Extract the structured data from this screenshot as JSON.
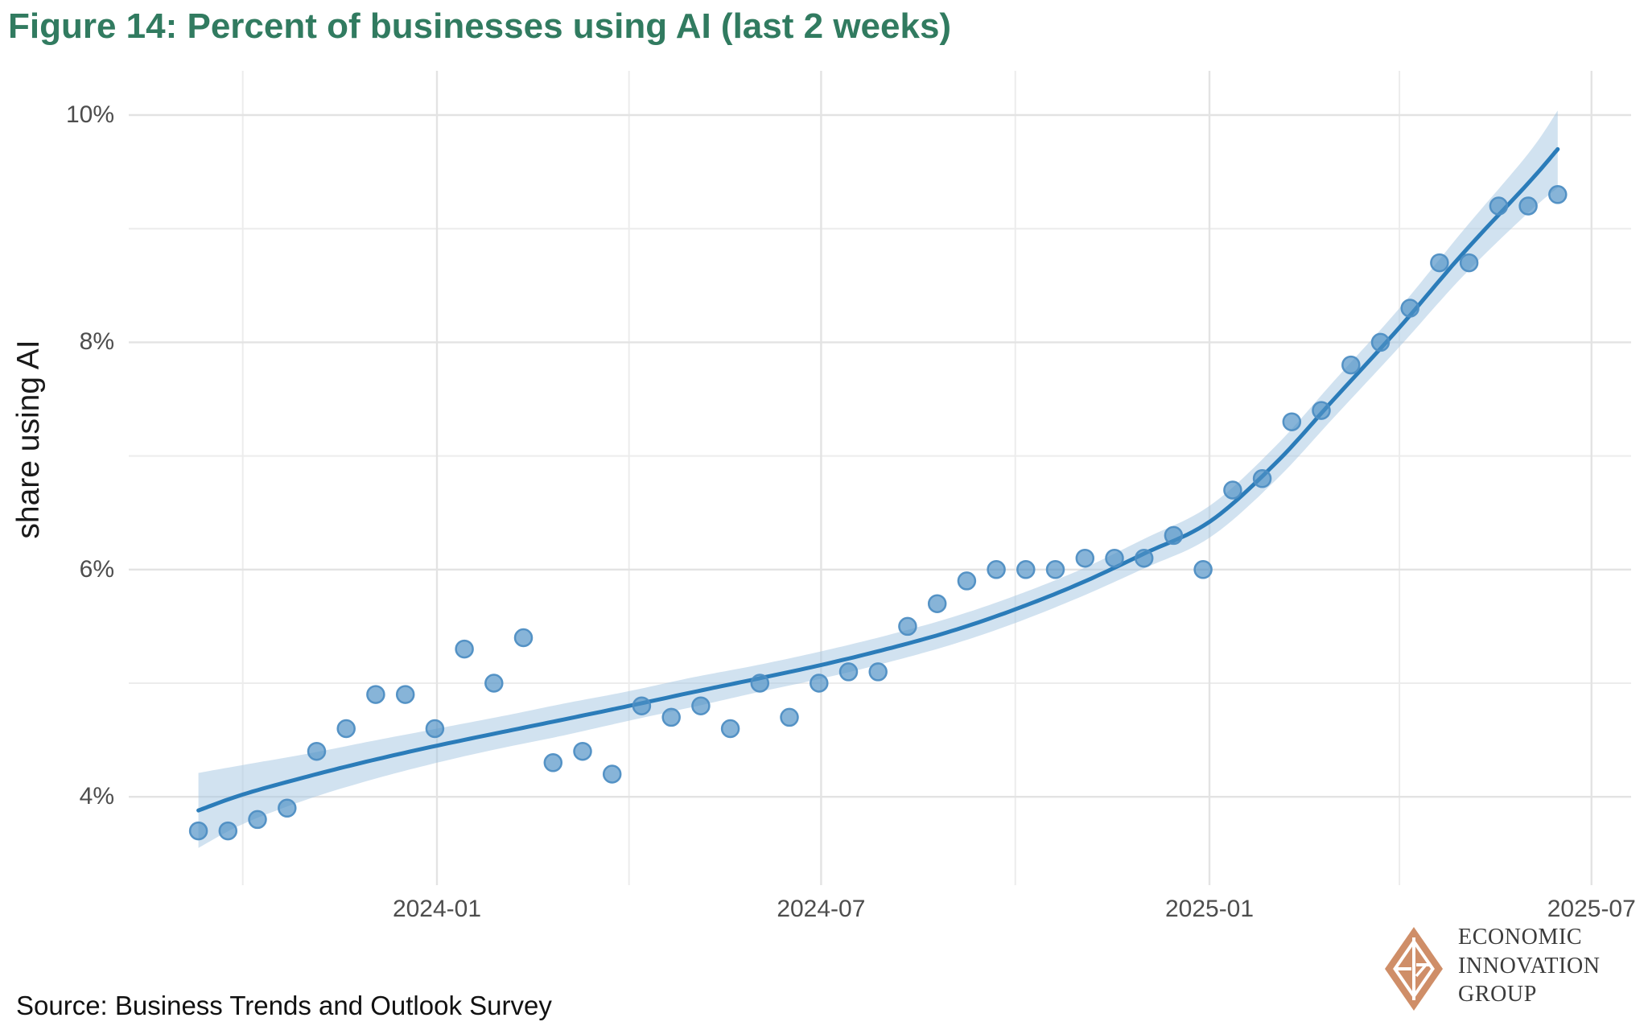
{
  "figure": {
    "title": "Figure 14: Percent of businesses using AI (last 2 weeks)",
    "source": "Source: Business Trends and Outlook Survey",
    "logo": {
      "line1": "ECONOMIC",
      "line2": "INNOVATION",
      "line3": "GROUP"
    }
  },
  "colors": {
    "title_green": "#317b60",
    "trend_line": "#2b7cb9",
    "point_fill": "rgba(78,145,197,0.68)",
    "point_stroke": "#4e8ec3",
    "band_fill": "rgba(163,197,226,0.5)",
    "grid_major": "#e3e3e3",
    "grid_minor": "#ececec",
    "tick_text": "#4d4d4d",
    "logo_salmon": "#cf8e68",
    "logo_text": "#3b3b3b"
  },
  "chart_data": {
    "type": "scatter",
    "title": "Figure 14: Percent of businesses using AI (last 2 weeks)",
    "xlabel": "",
    "ylabel": "share using AI",
    "ylim": [
      3.2,
      10.4
    ],
    "xlim": [
      "2023-08-08",
      "2025-07-18"
    ],
    "grid": "major+minor, no axis lines (minimal theme)",
    "legend": "none",
    "y_ticks": [
      {
        "value": 10,
        "label": "10%"
      },
      {
        "value": 8,
        "label": "8%"
      },
      {
        "value": 6,
        "label": "6%"
      },
      {
        "value": 4,
        "label": "4%"
      }
    ],
    "y_minor_gridlines": [
      9,
      7,
      5
    ],
    "x_ticks": [
      {
        "date": "2024-01-01",
        "label": "2024-01"
      },
      {
        "date": "2024-07-01",
        "label": "2024-07"
      },
      {
        "date": "2025-01-01",
        "label": "2025-01"
      },
      {
        "date": "2025-07-01",
        "label": "2025-07"
      }
    ],
    "x_minor_gridlines": [
      "2023-10-01",
      "2024-04-01",
      "2024-10-01",
      "2025-04-01"
    ],
    "points": [
      [
        "2023-09-10",
        3.7
      ],
      [
        "2023-09-24",
        3.7
      ],
      [
        "2023-10-08",
        3.8
      ],
      [
        "2023-10-22",
        3.9
      ],
      [
        "2023-11-05",
        4.4
      ],
      [
        "2023-11-19",
        4.6
      ],
      [
        "2023-12-03",
        4.9
      ],
      [
        "2023-12-17",
        4.9
      ],
      [
        "2023-12-31",
        4.6
      ],
      [
        "2024-01-14",
        5.3
      ],
      [
        "2024-01-28",
        5.0
      ],
      [
        "2024-02-11",
        5.4
      ],
      [
        "2024-02-25",
        4.3
      ],
      [
        "2024-03-10",
        4.4
      ],
      [
        "2024-03-24",
        4.2
      ],
      [
        "2024-04-07",
        4.8
      ],
      [
        "2024-04-21",
        4.7
      ],
      [
        "2024-05-05",
        4.8
      ],
      [
        "2024-05-19",
        4.6
      ],
      [
        "2024-06-02",
        5.0
      ],
      [
        "2024-06-16",
        4.7
      ],
      [
        "2024-06-30",
        5.0
      ],
      [
        "2024-07-14",
        5.1
      ],
      [
        "2024-07-28",
        5.1
      ],
      [
        "2024-08-11",
        5.5
      ],
      [
        "2024-08-25",
        5.7
      ],
      [
        "2024-09-08",
        5.9
      ],
      [
        "2024-09-22",
        6.0
      ],
      [
        "2024-10-06",
        6.0
      ],
      [
        "2024-10-20",
        6.0
      ],
      [
        "2024-11-03",
        6.1
      ],
      [
        "2024-11-17",
        6.1
      ],
      [
        "2024-12-01",
        6.1
      ],
      [
        "2024-12-15",
        6.3
      ],
      [
        "2024-12-29",
        6.0
      ],
      [
        "2025-01-12",
        6.7
      ],
      [
        "2025-01-26",
        6.8
      ],
      [
        "2025-02-09",
        7.3
      ],
      [
        "2025-02-23",
        7.4
      ],
      [
        "2025-03-09",
        7.8
      ],
      [
        "2025-03-23",
        8.0
      ],
      [
        "2025-04-06",
        8.3
      ],
      [
        "2025-04-20",
        8.7
      ],
      [
        "2025-05-04",
        8.7
      ],
      [
        "2025-05-18",
        9.2
      ],
      [
        "2025-06-01",
        9.2
      ],
      [
        "2025-06-15",
        9.3
      ]
    ],
    "trend_smooth_with_ci": [
      [
        "2023-09-10",
        3.88,
        0.33
      ],
      [
        "2023-10-01",
        4.02,
        0.26
      ],
      [
        "2023-11-01",
        4.18,
        0.2
      ],
      [
        "2023-12-01",
        4.32,
        0.17
      ],
      [
        "2024-01-01",
        4.45,
        0.15
      ],
      [
        "2024-02-01",
        4.57,
        0.14
      ],
      [
        "2024-03-01",
        4.68,
        0.14
      ],
      [
        "2024-04-01",
        4.8,
        0.13
      ],
      [
        "2024-05-01",
        4.92,
        0.13
      ],
      [
        "2024-06-01",
        5.04,
        0.12
      ],
      [
        "2024-07-01",
        5.16,
        0.12
      ],
      [
        "2024-08-01",
        5.3,
        0.12
      ],
      [
        "2024-09-01",
        5.46,
        0.12
      ],
      [
        "2024-10-01",
        5.65,
        0.12
      ],
      [
        "2024-11-01",
        5.88,
        0.12
      ],
      [
        "2024-12-01",
        6.14,
        0.13
      ],
      [
        "2025-01-01",
        6.42,
        0.14
      ],
      [
        "2025-02-01",
        6.93,
        0.15
      ],
      [
        "2025-03-01",
        7.5,
        0.16
      ],
      [
        "2025-04-01",
        8.13,
        0.17
      ],
      [
        "2025-05-01",
        8.78,
        0.2
      ],
      [
        "2025-06-01",
        9.4,
        0.26
      ],
      [
        "2025-06-15",
        9.7,
        0.34
      ]
    ]
  }
}
